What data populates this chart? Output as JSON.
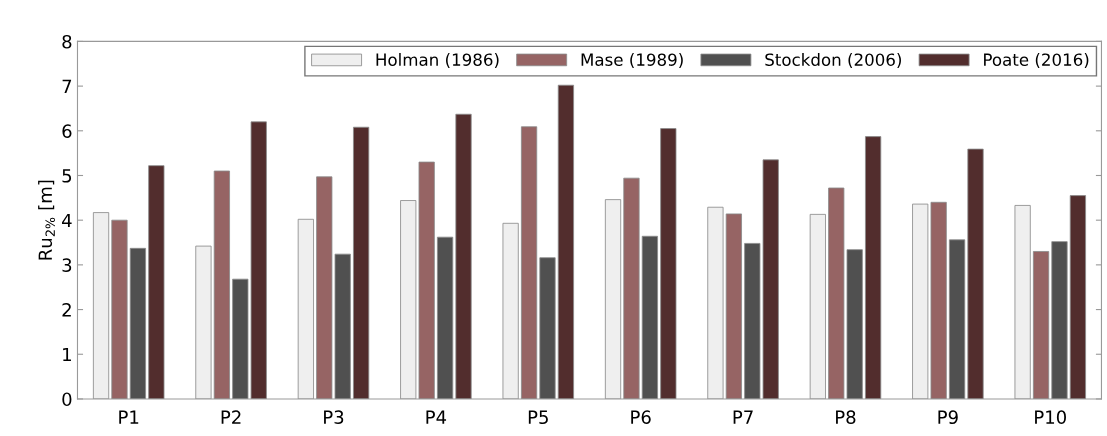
{
  "chart_data": {
    "type": "bar",
    "ylabel": "Ru$_{2%}$ [m]",
    "categories": [
      "P1",
      "P2",
      "P3",
      "P4",
      "P5",
      "P6",
      "P7",
      "P8",
      "P9",
      "P10"
    ],
    "series": [
      {
        "name": "Holman (1986)",
        "color": "#efefef",
        "values": [
          4.17,
          3.42,
          4.02,
          4.44,
          3.93,
          4.46,
          4.29,
          4.13,
          4.36,
          4.33
        ]
      },
      {
        "name": "Mase (1989)",
        "color": "#966464",
        "values": [
          4.0,
          5.1,
          4.97,
          5.3,
          6.09,
          4.94,
          4.14,
          4.72,
          4.4,
          3.3
        ]
      },
      {
        "name": "Stockdon (2006)",
        "color": "#505050",
        "values": [
          3.37,
          2.68,
          3.24,
          3.62,
          3.16,
          3.64,
          3.48,
          3.34,
          3.56,
          3.52
        ]
      },
      {
        "name": "Poate (2016)",
        "color": "#522d2d",
        "values": [
          5.22,
          6.2,
          6.08,
          6.37,
          7.02,
          6.05,
          5.35,
          5.87,
          5.59,
          4.55
        ]
      }
    ],
    "ylim": [
      0,
      8
    ],
    "yticks": [
      0,
      1,
      2,
      3,
      4,
      5,
      6,
      7,
      8
    ],
    "grid": false,
    "legend": "top right"
  }
}
